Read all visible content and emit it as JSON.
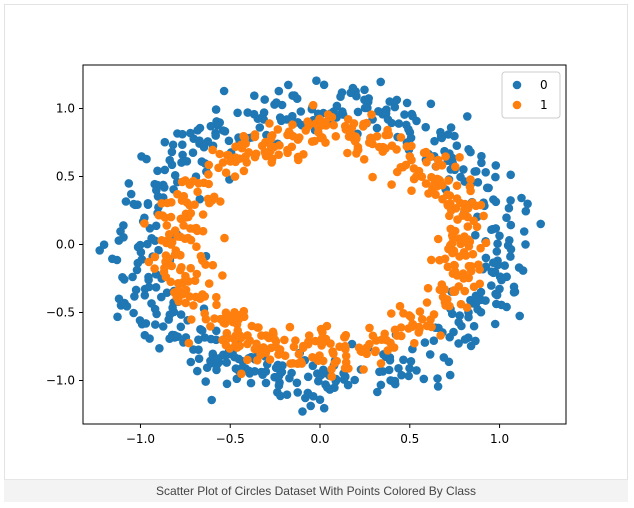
{
  "caption": "Scatter Plot of Circles Dataset With Points Colored By Class",
  "chart_data": {
    "type": "scatter",
    "title": "",
    "xlabel": "",
    "ylabel": "",
    "xlim": [
      -1.32,
      1.37
    ],
    "ylim": [
      -1.32,
      1.32
    ],
    "xticks": [
      -1.0,
      -0.5,
      0.0,
      0.5,
      1.0
    ],
    "yticks": [
      -1.0,
      -0.5,
      0.0,
      0.5,
      1.0
    ],
    "xtick_labels": [
      "−1.0",
      "−0.5",
      "0.0",
      "0.5",
      "1.0"
    ],
    "ytick_labels": [
      "−1.0",
      "−0.5",
      "0.0",
      "0.5",
      "1.0"
    ],
    "grid": false,
    "legend": {
      "placement": "top-right"
    },
    "series": [
      {
        "name": "0",
        "color": "#1f77b4",
        "ring": {
          "center": [
            0.0,
            0.0
          ],
          "mean_radius": 1.0,
          "noise": 0.1,
          "count": 500
        }
      },
      {
        "name": "1",
        "color": "#ff7f0e",
        "ring": {
          "center": [
            0.0,
            0.0
          ],
          "mean_radius": 0.8,
          "noise": 0.08,
          "count": 500
        }
      }
    ]
  }
}
